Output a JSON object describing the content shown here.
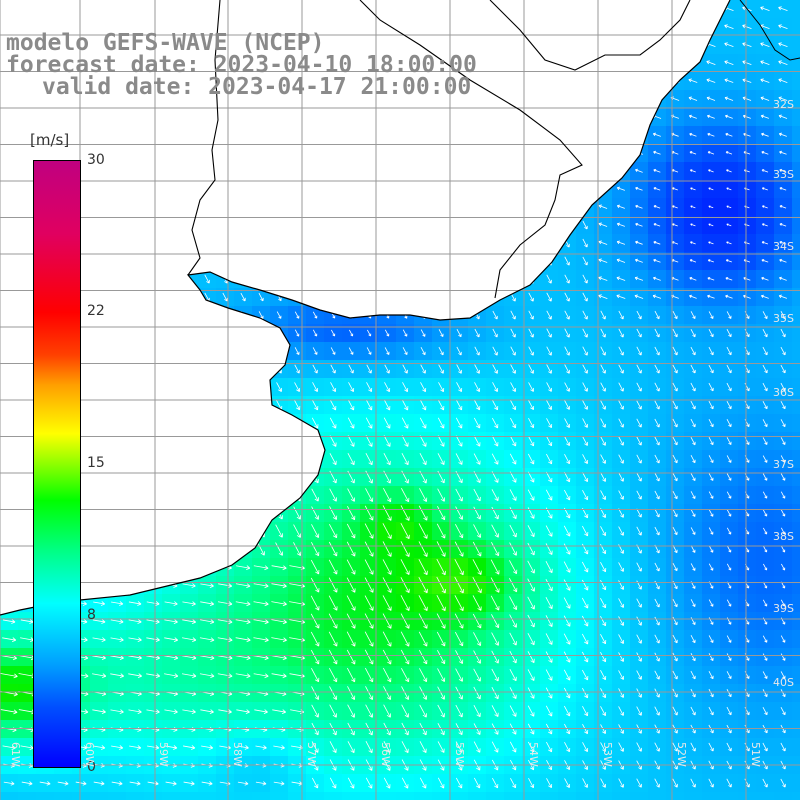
{
  "title": {
    "line1": "modelo GEFS-WAVE (NCEP)",
    "line2": "forecast date: 2023-04-10 18:00:00",
    "line3": "valid date: 2023-04-17 21:00:00"
  },
  "colorbar": {
    "unit": "[m/s]",
    "ticks": [
      "30",
      "22",
      "15",
      "8",
      "0"
    ],
    "range": [
      0,
      30
    ]
  },
  "lat_labels": [
    "32S",
    "33S",
    "34S",
    "35S",
    "36S",
    "37S",
    "38S",
    "39S",
    "40S"
  ],
  "lon_labels": [
    "61W",
    "60W",
    "59W",
    "58W",
    "57W",
    "56W",
    "55W",
    "54W",
    "53W",
    "52W",
    "51W"
  ],
  "colors": {
    "land": "#ffffff",
    "coast": "#000000",
    "grid": "#999999",
    "arrow": "#ffffff"
  }
}
